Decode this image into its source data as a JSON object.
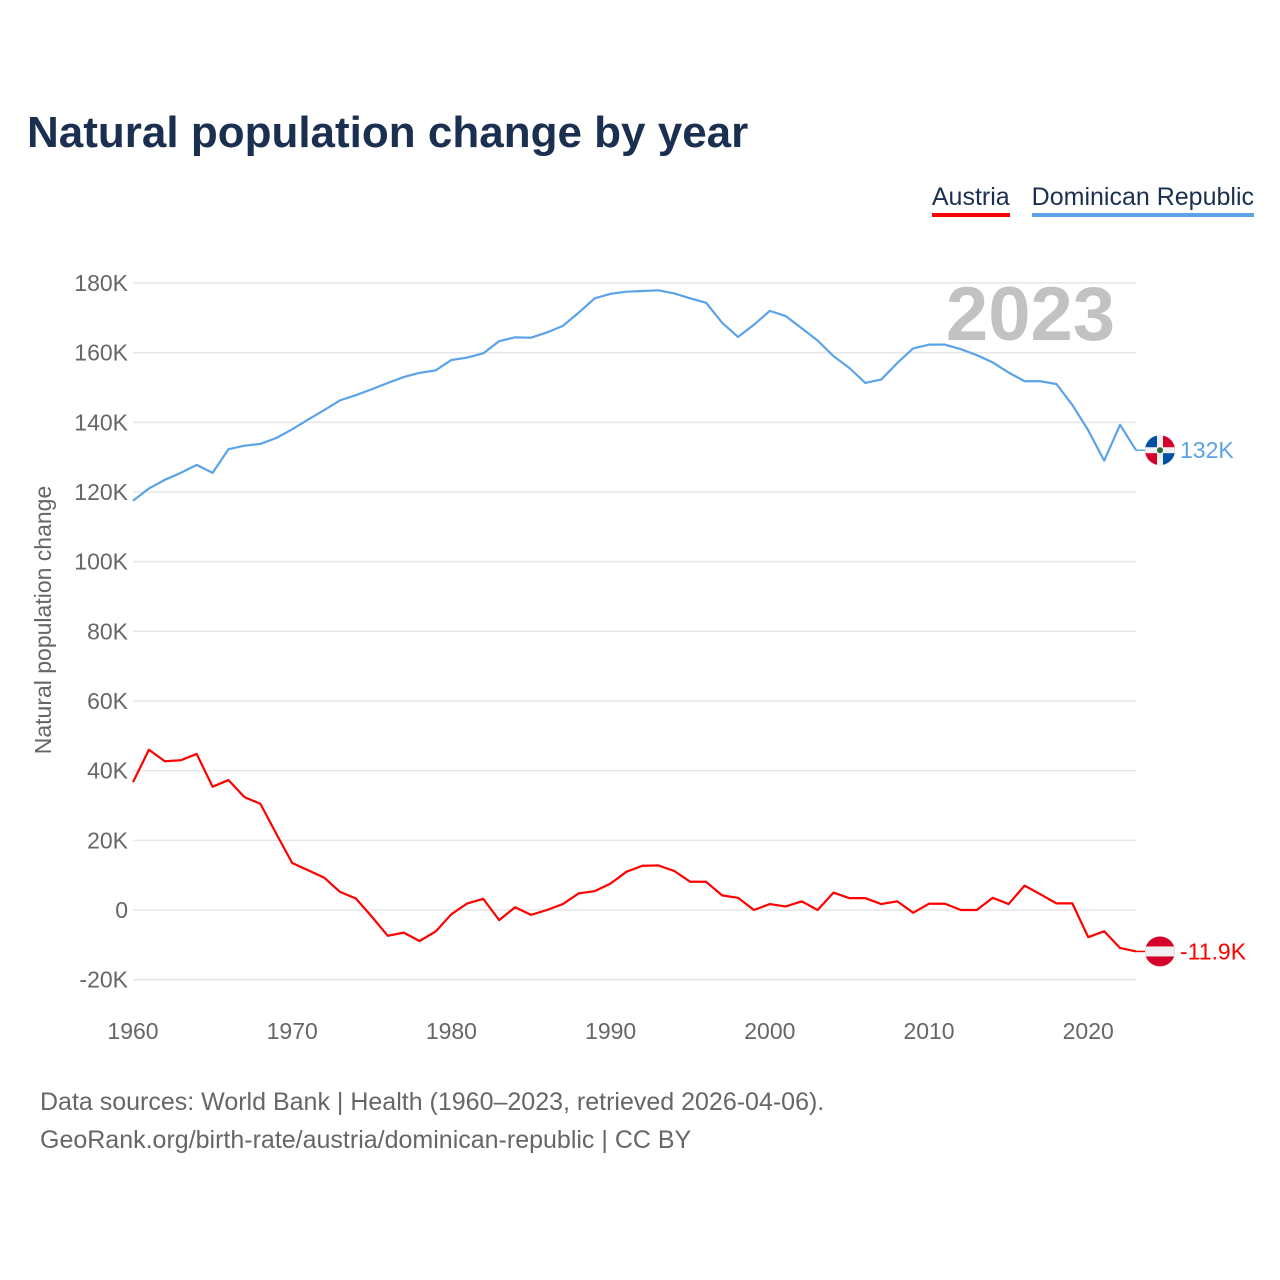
{
  "title": "Natural population change by year",
  "year_label": "2023",
  "footer": {
    "line1": "Data sources: World Bank | Health (1960–2023, retrieved 2026-04-06).",
    "line2": "GeoRank.org/birth-rate/austria/dominican-republic | CC BY"
  },
  "chart_data": {
    "type": "line",
    "title": "Natural population change by year",
    "xlabel": "",
    "ylabel": "Natural population change",
    "xlim": [
      1960,
      2023
    ],
    "ylim": [
      -20000,
      180000
    ],
    "grid": true,
    "legend_position": "top-right",
    "x_ticks": [
      "1960",
      "1970",
      "1980",
      "1990",
      "2000",
      "2010",
      "2020"
    ],
    "y_ticks": [
      "-20K",
      "0",
      "20K",
      "40K",
      "60K",
      "80K",
      "100K",
      "120K",
      "140K",
      "160K",
      "180K"
    ],
    "x": [
      1960,
      1961,
      1962,
      1963,
      1964,
      1965,
      1966,
      1967,
      1968,
      1969,
      1970,
      1971,
      1972,
      1973,
      1974,
      1975,
      1976,
      1977,
      1978,
      1979,
      1980,
      1981,
      1982,
      1983,
      1984,
      1985,
      1986,
      1987,
      1988,
      1989,
      1990,
      1991,
      1992,
      1993,
      1994,
      1995,
      1996,
      1997,
      1998,
      1999,
      2000,
      2001,
      2002,
      2003,
      2004,
      2005,
      2006,
      2007,
      2008,
      2009,
      2010,
      2011,
      2012,
      2013,
      2014,
      2015,
      2016,
      2017,
      2018,
      2019,
      2020,
      2021,
      2022,
      2023
    ],
    "series": [
      {
        "name": "Austria",
        "color": "#ff0000",
        "end_label": "-11.9K",
        "values": [
          36700,
          46000,
          42700,
          43000,
          44800,
          35400,
          37300,
          32400,
          30500,
          21900,
          13500,
          11400,
          9300,
          5200,
          3300,
          -1900,
          -7400,
          -6500,
          -8900,
          -6200,
          -1200,
          1900,
          3200,
          -2900,
          800,
          -1400,
          0,
          1700,
          4800,
          5400,
          7600,
          11000,
          12700,
          12800,
          11200,
          8100,
          8100,
          4200,
          3500,
          0,
          1700,
          1000,
          2500,
          0,
          5000,
          3400,
          3400,
          1700,
          2500,
          -800,
          1800,
          1800,
          0,
          0,
          3500,
          1700,
          7000,
          4500,
          1900,
          1900,
          -7800,
          -6100,
          -10900,
          -11900
        ]
      },
      {
        "name": "Dominican Republic",
        "color": "#5ba3e8",
        "end_label": "132K",
        "values": [
          117500,
          121000,
          123500,
          125500,
          127800,
          125500,
          132300,
          133300,
          133800,
          135500,
          138000,
          140800,
          143500,
          146300,
          147800,
          149500,
          151300,
          153000,
          154200,
          154900,
          157900,
          158600,
          159800,
          163300,
          164400,
          164300,
          165800,
          167700,
          171500,
          175600,
          176900,
          177500,
          177700,
          177900,
          177000,
          175600,
          174300,
          168600,
          164500,
          168000,
          172000,
          170500,
          167000,
          163500,
          159000,
          155600,
          151300,
          152300,
          157000,
          161200,
          162300,
          162300,
          161000,
          159300,
          157200,
          154300,
          151800,
          151800,
          151000,
          145000,
          137700,
          129000,
          139300,
          132000
        ]
      }
    ]
  }
}
